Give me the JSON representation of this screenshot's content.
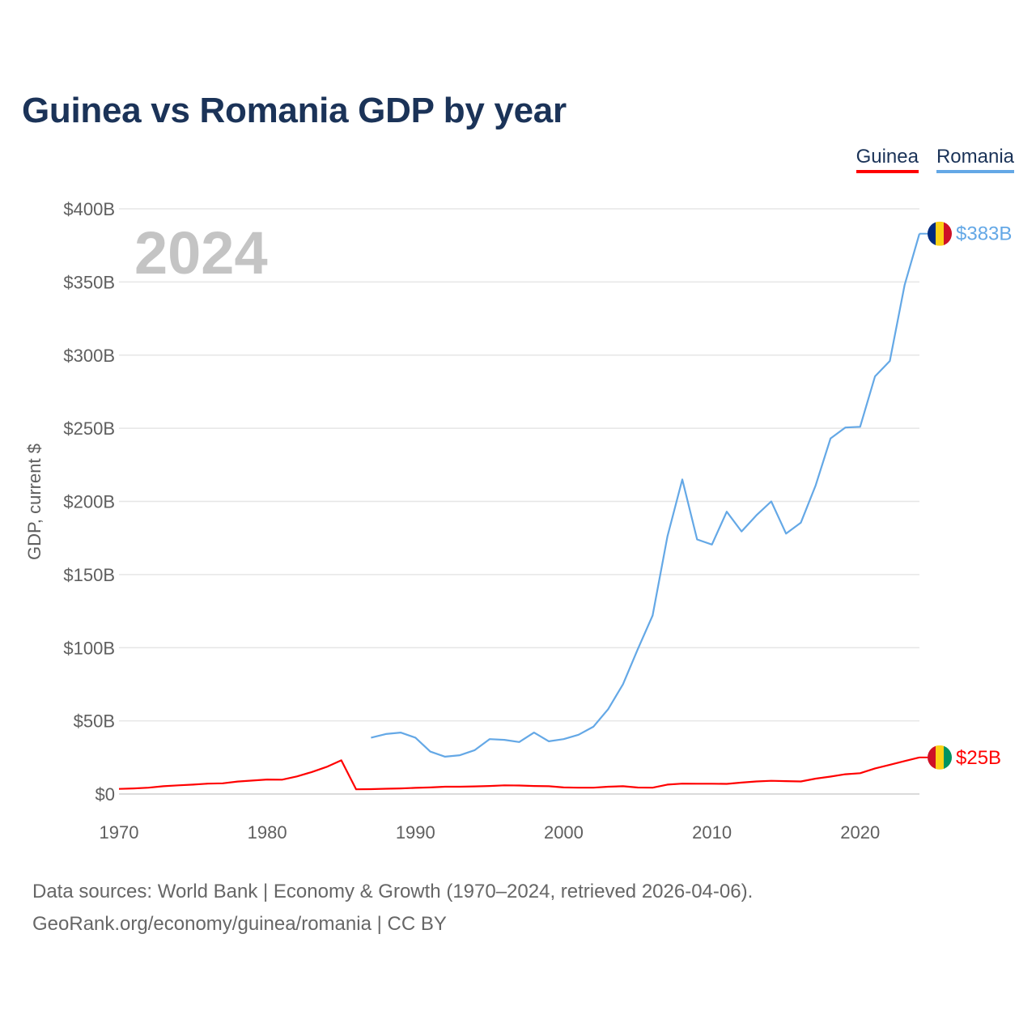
{
  "title": "Guinea vs Romania GDP by year",
  "legend": [
    {
      "name": "Guinea",
      "color": "#ff0000"
    },
    {
      "name": "Romania",
      "color": "#64a8e6"
    }
  ],
  "sources": {
    "line1": "Data sources: World Bank | Economy & Growth (1970–2024, retrieved 2026-04-06).",
    "line2": "GeoRank.org/economy/guinea/romania | CC BY"
  },
  "chart_data": {
    "type": "line",
    "title": "Guinea vs Romania GDP by year",
    "ylabel": "GDP, current $",
    "xlabel": "",
    "year_display": "2024",
    "xlim": [
      1970,
      2024
    ],
    "ylim": [
      0,
      400
    ],
    "y_unit": "billions USD",
    "x_ticks": [
      1970,
      1980,
      1990,
      2000,
      2010,
      2020
    ],
    "y_ticks": [
      {
        "value": 0,
        "label": "$0"
      },
      {
        "value": 50,
        "label": "$50B"
      },
      {
        "value": 100,
        "label": "$100B"
      },
      {
        "value": 150,
        "label": "$150B"
      },
      {
        "value": 200,
        "label": "$200B"
      },
      {
        "value": 250,
        "label": "$250B"
      },
      {
        "value": 300,
        "label": "$300B"
      },
      {
        "value": 350,
        "label": "$350B"
      },
      {
        "value": 400,
        "label": "$400B"
      }
    ],
    "grid": true,
    "legend_position": "top-right",
    "series": [
      {
        "name": "Guinea",
        "color": "#ff0000",
        "end_label": "$25B",
        "flag_colors": [
          "#ce1126",
          "#fcd116",
          "#009460"
        ],
        "x": [
          1970,
          1971,
          1972,
          1973,
          1974,
          1975,
          1976,
          1977,
          1978,
          1979,
          1980,
          1981,
          1982,
          1983,
          1984,
          1985,
          1986,
          1987,
          1988,
          1989,
          1990,
          1991,
          1992,
          1993,
          1994,
          1995,
          1996,
          1997,
          1998,
          1999,
          2000,
          2001,
          2002,
          2003,
          2004,
          2005,
          2006,
          2007,
          2008,
          2009,
          2010,
          2011,
          2012,
          2013,
          2014,
          2015,
          2016,
          2017,
          2018,
          2019,
          2020,
          2021,
          2022,
          2023,
          2024
        ],
        "values": [
          3.5,
          3.8,
          4.3,
          5.3,
          5.9,
          6.4,
          7.1,
          7.3,
          8.5,
          9.2,
          9.9,
          9.8,
          12.0,
          15.0,
          18.5,
          23.0,
          3.2,
          3.3,
          3.6,
          3.8,
          4.2,
          4.5,
          5.0,
          5.0,
          5.2,
          5.5,
          5.9,
          5.8,
          5.5,
          5.3,
          4.5,
          4.3,
          4.3,
          5.0,
          5.3,
          4.4,
          4.3,
          6.4,
          7.1,
          7.0,
          7.0,
          6.9,
          7.8,
          8.6,
          9.0,
          8.8,
          8.6,
          10.5,
          11.9,
          13.5,
          14.2,
          17.5,
          20.0,
          22.5,
          25.0
        ]
      },
      {
        "name": "Romania",
        "color": "#64a8e6",
        "end_label": "$383B",
        "flag_colors": [
          "#002b7f",
          "#fcd116",
          "#ce1126"
        ],
        "x": [
          1987,
          1988,
          1989,
          1990,
          1991,
          1992,
          1993,
          1994,
          1995,
          1996,
          1997,
          1998,
          1999,
          2000,
          2001,
          2002,
          2003,
          2004,
          2005,
          2006,
          2007,
          2008,
          2009,
          2010,
          2011,
          2012,
          2013,
          2014,
          2015,
          2016,
          2017,
          2018,
          2019,
          2020,
          2021,
          2022,
          2023,
          2024
        ],
        "values": [
          38.5,
          41.0,
          42.0,
          38.5,
          29.0,
          25.5,
          26.5,
          30.0,
          37.5,
          37.0,
          35.5,
          42.0,
          36.0,
          37.5,
          40.5,
          46.0,
          58.0,
          75.0,
          99.0,
          122.0,
          176.0,
          215.0,
          174.0,
          170.5,
          193.0,
          179.5,
          190.5,
          200.0,
          178.0,
          185.5,
          211.0,
          243.0,
          250.5,
          251.0,
          285.5,
          296.0,
          348.0,
          383.0
        ]
      }
    ]
  }
}
